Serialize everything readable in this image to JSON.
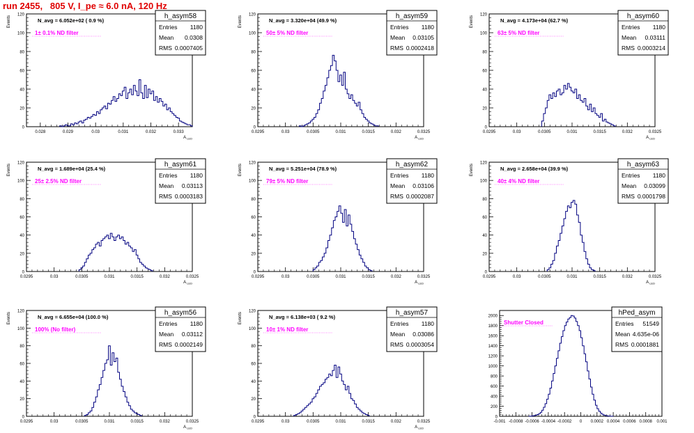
{
  "run_title": "run 2455,   805 V, I_pe ≈ 6.0 nA, 120 Hz",
  "colors": {
    "hist": "#000080",
    "annot_filter": "#ff00ff",
    "title": "#e00000",
    "axis": "#000000"
  },
  "chart_data": [
    {
      "type": "histogram",
      "name": "h_asym58",
      "ylabel": "Events",
      "xlabel": "A_LED",
      "navg": "N_avg = 6.052e+02 ( 0.9 %)",
      "filter": "1± 0.1% ND filter",
      "stats": [
        [
          "Entries",
          "1180"
        ],
        [
          "Mean",
          "0.0308"
        ],
        [
          "RMS",
          "0.0007405"
        ]
      ],
      "xlim": [
        0.0275,
        0.0335
      ],
      "ylim": [
        0,
        120
      ],
      "xticks": [
        "0.028",
        "0.029",
        "0.03",
        "0.031",
        "0.032",
        "0.033"
      ],
      "xtick_values": [
        0.028,
        0.029,
        0.03,
        0.031,
        0.032,
        0.033
      ],
      "yticks": [
        0,
        20,
        40,
        60,
        80,
        100,
        120
      ],
      "bins": {
        "start": 0.0287,
        "width": 6.67e-05,
        "counts": [
          1,
          0,
          1,
          2,
          1,
          1,
          3,
          2,
          4,
          3,
          5,
          6,
          4,
          7,
          8,
          10,
          9,
          11,
          13,
          12,
          16,
          14,
          18,
          20,
          22,
          19,
          25,
          24,
          28,
          32,
          27,
          30,
          35,
          33,
          38,
          42,
          30,
          36,
          40,
          34,
          44,
          38,
          33,
          50,
          36,
          30,
          44,
          31,
          40,
          35,
          38,
          28,
          32,
          26,
          30,
          27,
          22,
          24,
          18,
          20,
          16,
          14,
          12,
          10,
          9,
          6,
          5,
          4,
          3,
          2,
          2,
          1
        ]
      }
    },
    {
      "type": "histogram",
      "name": "h_asym59",
      "ylabel": "Events",
      "xlabel": "A_LED",
      "navg": "N_avg = 3.320e+04 (49.9 %)",
      "filter": "50± 5% ND filter",
      "stats": [
        [
          "Entries",
          "1180"
        ],
        [
          "Mean",
          "0.03105"
        ],
        [
          "RMS",
          "0.0002418"
        ]
      ],
      "xlim": [
        0.0295,
        0.0325
      ],
      "ylim": [
        0,
        120
      ],
      "xticks": [
        "0.0295",
        "0.03",
        "0.0305",
        "0.031",
        "0.0315",
        "0.032",
        "0.0325"
      ],
      "xtick_values": [
        0.0295,
        0.03,
        0.0305,
        0.031,
        0.0315,
        0.032,
        0.0325
      ],
      "yticks": [
        0,
        20,
        40,
        60,
        80,
        100,
        120
      ],
      "bins": {
        "start": 0.03025,
        "width": 3.33e-05,
        "counts": [
          1,
          0,
          1,
          2,
          3,
          4,
          6,
          8,
          10,
          14,
          18,
          25,
          30,
          38,
          44,
          52,
          60,
          65,
          76,
          70,
          60,
          48,
          55,
          44,
          58,
          40,
          35,
          30,
          34,
          28,
          25,
          22,
          26,
          18,
          14,
          10,
          8,
          6,
          4,
          3,
          2,
          1,
          1
        ]
      }
    },
    {
      "type": "histogram",
      "name": "h_asym60",
      "ylabel": "Events",
      "xlabel": "A_LED",
      "navg": "N_avg = 4.173e+04 (62.7 %)",
      "filter": "63± 5% ND filter",
      "stats": [
        [
          "Entries",
          "1180"
        ],
        [
          "Mean",
          "0.03111"
        ],
        [
          "RMS",
          "0.0003214"
        ]
      ],
      "xlim": [
        0.0295,
        0.0325
      ],
      "ylim": [
        0,
        120
      ],
      "xticks": [
        "0.0295",
        "0.03",
        "0.0305",
        "0.031",
        "0.0315",
        "0.032",
        "0.0325"
      ],
      "xtick_values": [
        0.0295,
        0.03,
        0.0305,
        0.031,
        0.0315,
        0.032,
        0.0325
      ],
      "yticks": [
        0,
        20,
        40,
        60,
        80,
        100,
        120
      ],
      "bins": {
        "start": 0.03045,
        "width": 3.33e-05,
        "counts": [
          6,
          14,
          20,
          28,
          34,
          30,
          36,
          32,
          38,
          40,
          34,
          36,
          44,
          40,
          46,
          42,
          38,
          36,
          40,
          30,
          34,
          28,
          26,
          30,
          22,
          18,
          24,
          16,
          20,
          14,
          12,
          10,
          14,
          6,
          8,
          5,
          4,
          3,
          2,
          1
        ]
      }
    },
    {
      "type": "histogram",
      "name": "h_asym61",
      "ylabel": "Events",
      "xlabel": "A_LED",
      "navg": "N_avg = 1.689e+04 (25.4 %)",
      "filter": "25± 2.5% ND filter",
      "stats": [
        [
          "Entries",
          "1180"
        ],
        [
          "Mean",
          "0.03113"
        ],
        [
          "RMS",
          "0.0003183"
        ]
      ],
      "xlim": [
        0.0295,
        0.0325
      ],
      "ylim": [
        0,
        120
      ],
      "xticks": [
        "0.0295",
        "0.03",
        "0.0305",
        "0.031",
        "0.0315",
        "0.032",
        "0.0325"
      ],
      "xtick_values": [
        0.0295,
        0.03,
        0.0305,
        0.031,
        0.0315,
        0.032,
        0.0325
      ],
      "yticks": [
        0,
        20,
        40,
        60,
        80,
        100,
        120
      ],
      "bins": {
        "start": 0.03045,
        "width": 3.33e-05,
        "counts": [
          2,
          4,
          6,
          10,
          14,
          18,
          20,
          24,
          26,
          30,
          32,
          28,
          34,
          36,
          38,
          40,
          36,
          42,
          38,
          34,
          38,
          40,
          36,
          38,
          34,
          30,
          32,
          28,
          26,
          22,
          24,
          18,
          14,
          10,
          8,
          6,
          4,
          3,
          2,
          1
        ]
      }
    },
    {
      "type": "histogram",
      "name": "h_asym62",
      "ylabel": "Events",
      "xlabel": "A_LED",
      "navg": "N_avg = 5.251e+04 (78.9 %)",
      "filter": "79± 5% ND filter",
      "stats": [
        [
          "Entries",
          "1180"
        ],
        [
          "Mean",
          "0.03106"
        ],
        [
          "RMS",
          "0.0002087"
        ]
      ],
      "xlim": [
        0.0295,
        0.0325
      ],
      "ylim": [
        0,
        120
      ],
      "xticks": [
        "0.0295",
        "0.03",
        "0.0305",
        "0.031",
        "0.0315",
        "0.032",
        "0.0325"
      ],
      "xtick_values": [
        0.0295,
        0.03,
        0.0305,
        0.031,
        0.0315,
        0.032,
        0.0325
      ],
      "yticks": [
        0,
        20,
        40,
        60,
        80,
        100,
        120
      ],
      "bins": {
        "start": 0.0305,
        "width": 3.33e-05,
        "counts": [
          2,
          4,
          6,
          10,
          12,
          16,
          20,
          26,
          34,
          40,
          48,
          56,
          60,
          66,
          72,
          64,
          54,
          68,
          50,
          62,
          52,
          44,
          36,
          30,
          24,
          18,
          14,
          10,
          6,
          4,
          2,
          1
        ]
      }
    },
    {
      "type": "histogram",
      "name": "h_asym63",
      "ylabel": "Events",
      "xlabel": "A_LED",
      "navg": "N_avg = 2.658e+04 (39.9 %)",
      "filter": "40± 4% ND filter",
      "stats": [
        [
          "Entries",
          "1180"
        ],
        [
          "Mean",
          "0.03099"
        ],
        [
          "RMS",
          "0.0001798"
        ]
      ],
      "xlim": [
        0.0295,
        0.0325
      ],
      "ylim": [
        0,
        120
      ],
      "xticks": [
        "0.0295",
        "0.03",
        "0.0305",
        "0.031",
        "0.0315",
        "0.032",
        "0.0325"
      ],
      "xtick_values": [
        0.0295,
        0.03,
        0.0305,
        0.031,
        0.0315,
        0.032,
        0.0325
      ],
      "yticks": [
        0,
        20,
        40,
        60,
        80,
        100,
        120
      ],
      "bins": {
        "start": 0.03055,
        "width": 3.33e-05,
        "counts": [
          2,
          4,
          8,
          12,
          20,
          28,
          34,
          42,
          50,
          58,
          66,
          72,
          70,
          76,
          78,
          74,
          62,
          54,
          40,
          32,
          22,
          14,
          8,
          4,
          2,
          1
        ]
      }
    },
    {
      "type": "histogram",
      "name": "h_asym56",
      "ylabel": "Events",
      "xlabel": "A_LED",
      "navg": "N_avg = 6.655e+04 (100.0 %)",
      "filter": "100% (No filter)",
      "stats": [
        [
          "Entries",
          "1180"
        ],
        [
          "Mean",
          "0.03112"
        ],
        [
          "RMS",
          "0.0002149"
        ]
      ],
      "xlim": [
        0.0295,
        0.0325
      ],
      "ylim": [
        0,
        120
      ],
      "xticks": [
        "0.0295",
        "0.03",
        "0.0305",
        "0.031",
        "0.0315",
        "0.032",
        "0.0325"
      ],
      "xtick_values": [
        0.0295,
        0.03,
        0.0305,
        0.031,
        0.0315,
        0.032,
        0.0325
      ],
      "yticks": [
        0,
        20,
        40,
        60,
        80,
        100,
        120
      ],
      "bins": {
        "start": 0.03055,
        "width": 3.33e-05,
        "counts": [
          1,
          2,
          4,
          6,
          10,
          16,
          22,
          30,
          36,
          44,
          52,
          60,
          64,
          80,
          58,
          72,
          62,
          66,
          50,
          42,
          34,
          28,
          22,
          16,
          12,
          8,
          6,
          4,
          3,
          2,
          1
        ]
      }
    },
    {
      "type": "histogram",
      "name": "h_asym57",
      "ylabel": "Events",
      "xlabel": "A_LED",
      "navg": "N_avg = 6.138e+03 ( 9.2 %)",
      "filter": "10± 1% ND filter",
      "stats": [
        [
          "Entries",
          "1180"
        ],
        [
          "Mean",
          "0.03086"
        ],
        [
          "RMS",
          "0.0003054"
        ]
      ],
      "xlim": [
        0.0295,
        0.0325
      ],
      "ylim": [
        0,
        120
      ],
      "xticks": [
        "0.0295",
        "0.03",
        "0.0305",
        "0.031",
        "0.0315",
        "0.032",
        "0.0325"
      ],
      "xtick_values": [
        0.0295,
        0.03,
        0.0305,
        0.031,
        0.0315,
        0.032,
        0.0325
      ],
      "yticks": [
        0,
        20,
        40,
        60,
        80,
        100,
        120
      ],
      "bins": {
        "start": 0.03015,
        "width": 3.33e-05,
        "counts": [
          1,
          2,
          3,
          4,
          6,
          8,
          10,
          12,
          14,
          16,
          20,
          22,
          26,
          30,
          34,
          36,
          38,
          42,
          44,
          48,
          46,
          52,
          58,
          44,
          56,
          48,
          40,
          36,
          30,
          34,
          26,
          20,
          18,
          14,
          10,
          8,
          6,
          4,
          3,
          2,
          1
        ]
      }
    },
    {
      "type": "histogram",
      "name": "hPed_asym",
      "ylabel": "",
      "xlabel": "",
      "navg": "",
      "filter": "Shutter Closed",
      "stats": [
        [
          "Entries",
          "51549"
        ],
        [
          "Mean",
          "4.635e-06"
        ],
        [
          "RMS",
          "0.0001881"
        ]
      ],
      "xlim": [
        -0.001,
        0.001
      ],
      "ylim": [
        0,
        2100
      ],
      "xticks": [
        "-0.001",
        "-0.0008",
        "-0.0006",
        "-0.0004",
        "-0.0002",
        "0",
        "0.0002",
        "0.0004",
        "0.0006",
        "0.0008",
        "0.001"
      ],
      "xtick_values": [
        -0.001,
        -0.0008,
        -0.0006,
        -0.0004,
        -0.0002,
        0,
        0.0002,
        0.0004,
        0.0006,
        0.0008,
        0.001
      ],
      "yticks": [
        0,
        200,
        400,
        600,
        800,
        1000,
        1200,
        1400,
        1600,
        1800,
        2000
      ],
      "bins": {
        "start": -0.00064,
        "width": 2e-05,
        "counts": [
          2,
          4,
          8,
          14,
          22,
          34,
          50,
          80,
          120,
          180,
          250,
          340,
          440,
          560,
          700,
          850,
          1000,
          1150,
          1300,
          1450,
          1580,
          1700,
          1800,
          1870,
          1930,
          1960,
          2000,
          1990,
          1950,
          1880,
          1800,
          1700,
          1560,
          1400,
          1240,
          1080,
          900,
          740,
          580,
          440,
          320,
          220,
          150,
          100,
          64,
          40,
          24,
          14,
          8,
          4,
          2,
          1
        ]
      }
    }
  ]
}
